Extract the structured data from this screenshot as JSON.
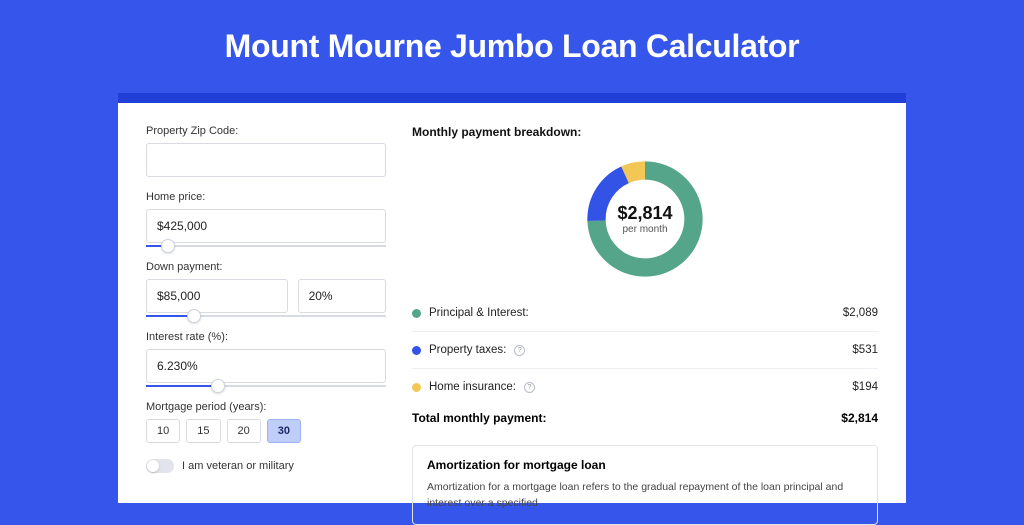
{
  "page": {
    "title": "Mount Mourne Jumbo Loan Calculator",
    "background_color": "#3555eb",
    "accent_border_color": "#1f3fd6"
  },
  "form": {
    "zip": {
      "label": "Property Zip Code:",
      "value": ""
    },
    "home_price": {
      "label": "Home price:",
      "value": "$425,000",
      "slider_fill_pct": 9
    },
    "down_payment": {
      "label": "Down payment:",
      "value": "$85,000",
      "percent_value": "20%",
      "slider_fill_pct": 20
    },
    "interest_rate": {
      "label": "Interest rate (%):",
      "value": "6.230%",
      "slider_fill_pct": 30
    },
    "mortgage_period": {
      "label": "Mortgage period (years):",
      "options": [
        "10",
        "15",
        "20",
        "30"
      ],
      "active_index": 3
    },
    "veteran": {
      "label": "I am veteran or military",
      "checked": false
    }
  },
  "breakdown": {
    "title": "Monthly payment breakdown:",
    "donut": {
      "amount": "$2,814",
      "sub": "per month",
      "slices": [
        {
          "label": "Principal & Interest",
          "color": "#55a58a",
          "value": 2089,
          "pct": 74.3
        },
        {
          "label": "Property taxes",
          "color": "#3253e6",
          "value": 531,
          "pct": 18.8
        },
        {
          "label": "Home insurance",
          "color": "#f3c755",
          "value": 194,
          "pct": 6.9
        }
      ],
      "ring_bg": "#ececec"
    },
    "rows": [
      {
        "dot_color": "#55a58a",
        "label": "Principal & Interest:",
        "help": false,
        "amount": "$2,089"
      },
      {
        "dot_color": "#3253e6",
        "label": "Property taxes:",
        "help": true,
        "amount": "$531"
      },
      {
        "dot_color": "#f3c755",
        "label": "Home insurance:",
        "help": true,
        "amount": "$194"
      }
    ],
    "total": {
      "label": "Total monthly payment:",
      "amount": "$2,814"
    }
  },
  "amortization": {
    "title": "Amortization for mortgage loan",
    "text": "Amortization for a mortgage loan refers to the gradual repayment of the loan principal and interest over a specified"
  }
}
